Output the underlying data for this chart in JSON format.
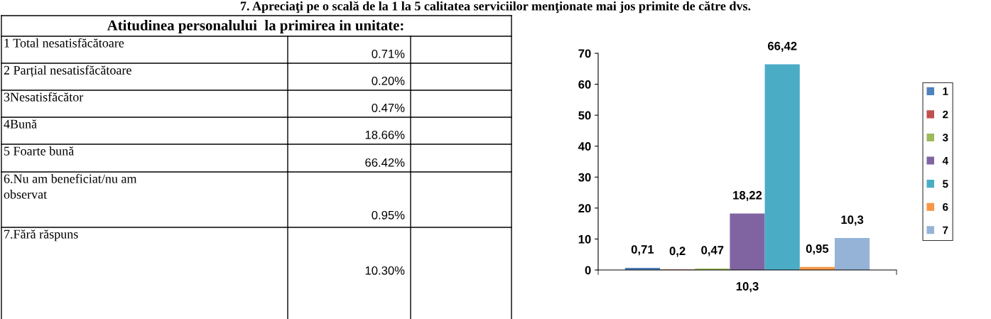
{
  "chart_data": [
    {
      "type": "other",
      "title": "7. Apreciaţi pe o scală de la 1 la 5 calitatea serviciilor menţionate mai jos primite de către dvs.",
      "subtitle": "Atitudinea personalului  la primirea in unitate:",
      "categories": [
        "1 Total nesatisfăcătoare",
        "2 Parțial nesatisfăcătoare",
        "3Nesatisfăcător",
        "4Bună",
        "5 Foarte bună",
        "6.Nu am beneficiat/nu am\nobservat",
        "7.Fără răspuns"
      ],
      "value_labels": [
        "0.71%",
        "0.20%",
        "0.47%",
        "18.66%",
        "66.42%",
        "0.95%",
        "10.30%"
      ]
    },
    {
      "type": "bar",
      "categories": [
        "10,3"
      ],
      "ylim": [
        0,
        70
      ],
      "yticks": [
        0,
        10,
        20,
        30,
        40,
        50,
        60,
        70
      ],
      "grid": false,
      "legend": "right",
      "series": [
        {
          "name": "1",
          "color": "#4f81bd",
          "values": [
            0.71
          ],
          "value_labels": [
            "0,71"
          ]
        },
        {
          "name": "2",
          "color": "#c0504d",
          "values": [
            0.2
          ],
          "value_labels": [
            "0,2"
          ]
        },
        {
          "name": "3",
          "color": "#9bbb59",
          "values": [
            0.47
          ],
          "value_labels": [
            "0,47"
          ]
        },
        {
          "name": "4",
          "color": "#8064a2",
          "values": [
            18.22
          ],
          "value_labels": [
            "18,22"
          ]
        },
        {
          "name": "5",
          "color": "#4bacc6",
          "values": [
            66.42
          ],
          "value_labels": [
            "66,42"
          ]
        },
        {
          "name": "6",
          "color": "#f79646",
          "values": [
            0.95
          ],
          "value_labels": [
            "0,95"
          ]
        },
        {
          "name": "7",
          "color": "#95b3d7",
          "values": [
            10.3
          ],
          "value_labels": [
            "10,3"
          ]
        }
      ]
    }
  ]
}
